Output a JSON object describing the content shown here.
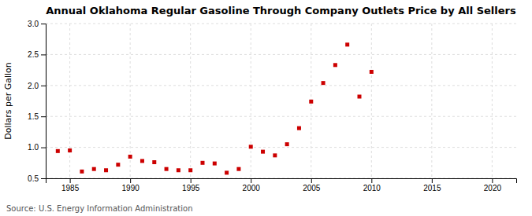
{
  "chart_data": {
    "type": "scatter",
    "title": "Annual Oklahoma Regular Gasoline Through Company Outlets Price by All Sellers",
    "ylabel": "Dollars per Gallon",
    "annotations": [
      "Source: U.S. Energy Information Administration"
    ],
    "x": [
      1984,
      1985,
      1986,
      1987,
      1988,
      1989,
      1990,
      1991,
      1992,
      1993,
      1994,
      1995,
      1996,
      1997,
      1998,
      1999,
      2000,
      2001,
      2002,
      2003,
      2004,
      2005,
      2006,
      2007,
      2008,
      2009,
      2010
    ],
    "values": [
      0.94,
      0.95,
      0.61,
      0.65,
      0.63,
      0.72,
      0.85,
      0.78,
      0.76,
      0.65,
      0.63,
      0.63,
      0.75,
      0.74,
      0.59,
      0.65,
      1.01,
      0.93,
      0.87,
      1.05,
      1.31,
      1.74,
      2.04,
      2.33,
      2.66,
      1.82,
      2.22
    ],
    "color": "#cc0000",
    "marker": "square",
    "xlim": [
      1983,
      2022
    ],
    "ylim": [
      0.5,
      3.0
    ],
    "xticks": [
      1985,
      1990,
      1995,
      2000,
      2005,
      2010,
      2015,
      2020
    ],
    "yticks": [
      0.5,
      {
        "value": 1.0,
        "label": "1.0"
      },
      1.5,
      {
        "value": 2.0,
        "label": "2.0"
      },
      2.5,
      {
        "value": 3.0,
        "label": "3.0"
      }
    ],
    "grid": true
  }
}
